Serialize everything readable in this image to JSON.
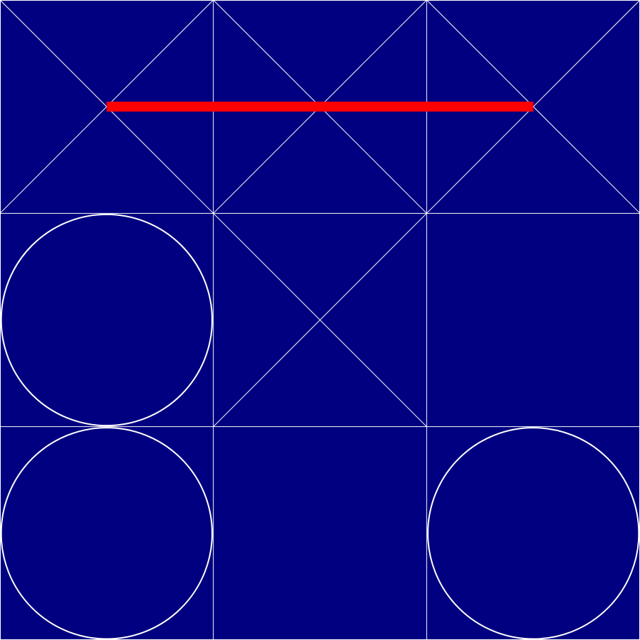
{
  "game": {
    "rows": 3,
    "cols": 3,
    "colors": {
      "background": "#000080",
      "grid_line": "#ffffff",
      "mark": "#ffffff",
      "win_line": "#ff0000"
    },
    "board": [
      [
        "X",
        "X",
        "X"
      ],
      [
        "O",
        "X",
        ""
      ],
      [
        "O",
        "",
        "O"
      ]
    ],
    "win_line": {
      "from": {
        "row": 0,
        "col": 0
      },
      "to": {
        "row": 0,
        "col": 2
      },
      "winner": "X"
    }
  }
}
